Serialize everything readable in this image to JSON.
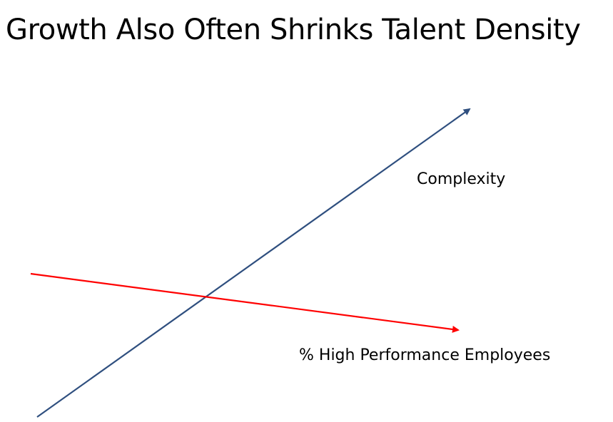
{
  "slide": {
    "title": "Growth Also Often Shrinks Talent Density"
  },
  "diagram": {
    "lines": [
      {
        "id": "complexity",
        "label": "Complexity",
        "color": "#2f4f7f",
        "trend": "increasing"
      },
      {
        "id": "high-performance",
        "label": "% High Performance Employees",
        "color": "#ff0000",
        "trend": "decreasing"
      }
    ]
  }
}
